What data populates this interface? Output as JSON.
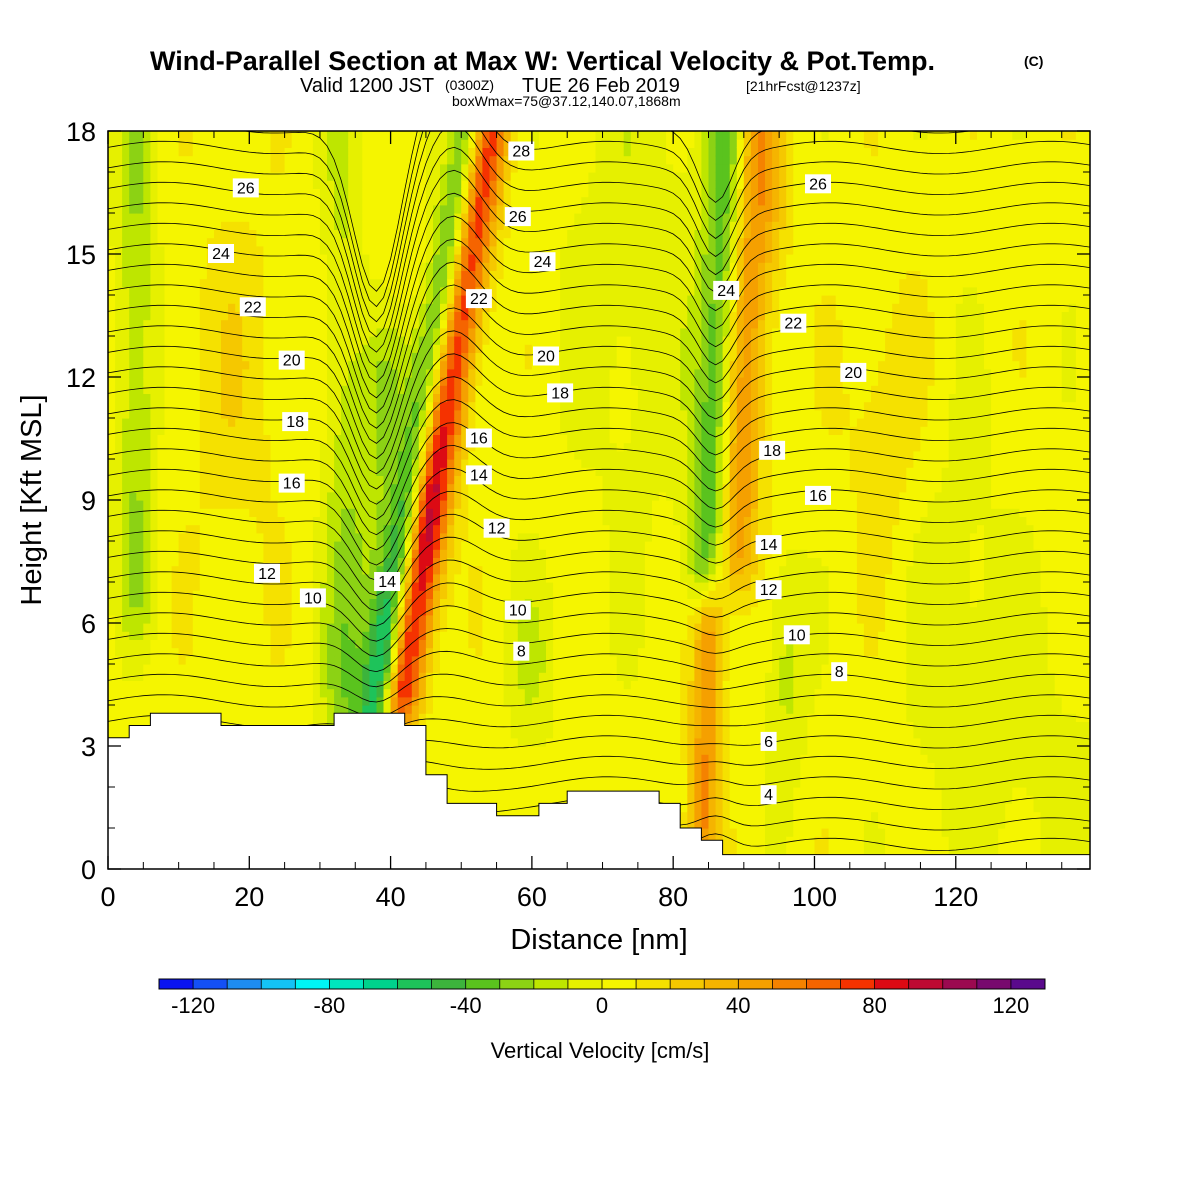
{
  "titles": {
    "main": "Wind-Parallel Section at Max W: Vertical Velocity & Pot.Temp.",
    "copyright": "(C)",
    "valid_prefix": "Valid 1200 JST",
    "valid_utc": "(0300Z)",
    "valid_date": "TUE 26 Feb 2019",
    "forecast": "[21hrFcst@1237z]",
    "box_info": "boxWmax=75@37.12,140.07,1868m"
  },
  "chart_data": {
    "type": "heatmap",
    "xlabel": "Distance [nm]",
    "ylabel": "Height [Kft MSL]",
    "xlim": [
      0,
      139
    ],
    "ylim": [
      0,
      18
    ],
    "x_ticks": [
      0,
      20,
      40,
      60,
      80,
      100,
      120
    ],
    "y_ticks": [
      0,
      3,
      6,
      9,
      12,
      15,
      18
    ],
    "colorbar": {
      "label": "Vertical Velocity [cm/s]",
      "range": [
        -130,
        130
      ],
      "step": 10,
      "ticks": [
        -120,
        -80,
        -40,
        0,
        40,
        80,
        120
      ],
      "colors": [
        "#0a14f0",
        "#1450f5",
        "#1e8cf0",
        "#14c3f5",
        "#00f5f5",
        "#00e6be",
        "#00d28c",
        "#1ec35a",
        "#3cb43c",
        "#5ac31e",
        "#8cd214",
        "#bee600",
        "#e6f000",
        "#f5f500",
        "#f5e100",
        "#f5c800",
        "#f5b400",
        "#f5a000",
        "#f58200",
        "#f56400",
        "#f53200",
        "#dc0a14",
        "#be0a32",
        "#9b0a50",
        "#780a6e",
        "#5a0a8c"
      ]
    },
    "isentrope_labels": [
      {
        "value": "26",
        "x": 19.5,
        "y": 16.6
      },
      {
        "value": "24",
        "x": 16,
        "y": 15
      },
      {
        "value": "22",
        "x": 20.5,
        "y": 13.7
      },
      {
        "value": "20",
        "x": 26,
        "y": 12.4
      },
      {
        "value": "18",
        "x": 26.5,
        "y": 10.9
      },
      {
        "value": "16",
        "x": 26,
        "y": 9.4
      },
      {
        "value": "12",
        "x": 22.5,
        "y": 7.2
      },
      {
        "value": "10",
        "x": 29,
        "y": 6.6
      },
      {
        "value": "14",
        "x": 39.5,
        "y": 7.0
      },
      {
        "value": "28",
        "x": 58.5,
        "y": 17.5
      },
      {
        "value": "26",
        "x": 58,
        "y": 15.9
      },
      {
        "value": "24",
        "x": 61.5,
        "y": 14.8
      },
      {
        "value": "22",
        "x": 52.5,
        "y": 13.9
      },
      {
        "value": "20",
        "x": 62,
        "y": 12.5
      },
      {
        "value": "18",
        "x": 64,
        "y": 11.6
      },
      {
        "value": "16",
        "x": 52.5,
        "y": 10.5
      },
      {
        "value": "14",
        "x": 52.5,
        "y": 9.6
      },
      {
        "value": "12",
        "x": 55,
        "y": 8.3
      },
      {
        "value": "10",
        "x": 58,
        "y": 6.3
      },
      {
        "value": "8",
        "x": 58.5,
        "y": 5.3
      },
      {
        "value": "26",
        "x": 100.5,
        "y": 16.7
      },
      {
        "value": "24",
        "x": 87.5,
        "y": 14.1
      },
      {
        "value": "22",
        "x": 97,
        "y": 13.3
      },
      {
        "value": "20",
        "x": 105.5,
        "y": 12.1
      },
      {
        "value": "18",
        "x": 94,
        "y": 10.2
      },
      {
        "value": "16",
        "x": 100.5,
        "y": 9.1
      },
      {
        "value": "14",
        "x": 93.5,
        "y": 7.9
      },
      {
        "value": "12",
        "x": 93.5,
        "y": 6.8
      },
      {
        "value": "10",
        "x": 97.5,
        "y": 5.7
      },
      {
        "value": "8",
        "x": 103.5,
        "y": 4.8
      },
      {
        "value": "6",
        "x": 93.5,
        "y": 3.1
      },
      {
        "value": "4",
        "x": 93.5,
        "y": 1.8
      }
    ],
    "terrain": [
      [
        0,
        3.2
      ],
      [
        3,
        3.2
      ],
      [
        3,
        3.5
      ],
      [
        6,
        3.5
      ],
      [
        6,
        3.8
      ],
      [
        16,
        3.8
      ],
      [
        16,
        3.5
      ],
      [
        32,
        3.5
      ],
      [
        32,
        3.8
      ],
      [
        42,
        3.8
      ],
      [
        42,
        3.5
      ],
      [
        45,
        3.5
      ],
      [
        45,
        2.3
      ],
      [
        48,
        2.3
      ],
      [
        48,
        1.6
      ],
      [
        55,
        1.6
      ],
      [
        55,
        1.3
      ],
      [
        61,
        1.3
      ],
      [
        61,
        1.6
      ],
      [
        65,
        1.6
      ],
      [
        65,
        1.9
      ],
      [
        78,
        1.9
      ],
      [
        78,
        1.6
      ],
      [
        81,
        1.6
      ],
      [
        81,
        1
      ],
      [
        84,
        1
      ],
      [
        84,
        0.7
      ],
      [
        87,
        0.7
      ],
      [
        87,
        0.35
      ],
      [
        139,
        0.35
      ]
    ],
    "grid": false
  }
}
